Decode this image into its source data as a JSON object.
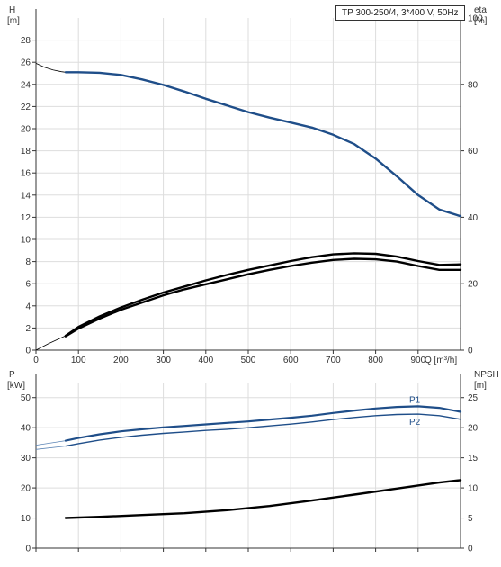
{
  "colors": {
    "blue": "#1f4e89",
    "black": "#000000",
    "grid": "#dddddd",
    "axis": "#333333",
    "thin_blue": "#5b84b5"
  },
  "chart_data": [
    {
      "type": "line",
      "title": "TP 300-250/4, 3*400 V, 50Hz",
      "xlabel": "Q [m³/h]",
      "ylabel_left_name": "H",
      "ylabel_left_unit": "[m]",
      "ylabel_right_name": "eta",
      "ylabel_right_unit": "[%]",
      "xlim": [
        0,
        1000
      ],
      "ylim_left": [
        0,
        30
      ],
      "ylim_right": [
        0,
        100
      ],
      "x_ticks": [
        "0",
        "100",
        "200",
        "300",
        "400",
        "500",
        "600",
        "700",
        "800",
        "900"
      ],
      "y_ticks_left": [
        "0",
        "2",
        "4",
        "6",
        "8",
        "10",
        "12",
        "14",
        "16",
        "18",
        "20",
        "22",
        "24",
        "26",
        "28"
      ],
      "y_ticks_right": [
        "0",
        "20",
        "40",
        "60",
        "80",
        "100"
      ],
      "grid": true,
      "series": [
        {
          "id": "head",
          "color": "blue",
          "x": [
            70,
            100,
            150,
            200,
            250,
            300,
            350,
            400,
            450,
            500,
            550,
            600,
            650,
            700,
            750,
            800,
            850,
            900,
            950,
            1000
          ],
          "y": [
            25.1,
            25.1,
            25.05,
            24.85,
            24.45,
            23.95,
            23.35,
            22.7,
            22.1,
            21.5,
            21.0,
            20.55,
            20.1,
            19.45,
            18.6,
            17.3,
            15.7,
            14.0,
            12.7,
            12.1
          ]
        },
        {
          "id": "eta_upper",
          "color": "black",
          "x": [
            70,
            100,
            150,
            200,
            250,
            300,
            350,
            400,
            450,
            500,
            550,
            600,
            650,
            700,
            750,
            800,
            850,
            900,
            950,
            1000
          ],
          "y": [
            1.3,
            2.1,
            3.05,
            3.85,
            4.55,
            5.2,
            5.75,
            6.3,
            6.8,
            7.25,
            7.65,
            8.05,
            8.4,
            8.65,
            8.75,
            8.7,
            8.45,
            8.05,
            7.7,
            7.75
          ]
        },
        {
          "id": "eta_lower",
          "color": "black",
          "x": [
            70,
            100,
            150,
            200,
            250,
            300,
            350,
            400,
            450,
            500,
            550,
            600,
            650,
            700,
            750,
            800,
            850,
            900,
            950,
            1000
          ],
          "y": [
            1.25,
            1.95,
            2.85,
            3.65,
            4.3,
            4.95,
            5.5,
            5.95,
            6.4,
            6.85,
            7.25,
            7.6,
            7.9,
            8.15,
            8.25,
            8.2,
            8.0,
            7.6,
            7.25,
            7.25
          ]
        }
      ],
      "extrapolations": [
        {
          "color": "black",
          "x": [
            0,
            20,
            40,
            60,
            70
          ],
          "y": [
            25.9,
            25.55,
            25.3,
            25.15,
            25.1
          ]
        },
        {
          "color": "black",
          "x": [
            0,
            30,
            70
          ],
          "y": [
            0.0,
            0.6,
            1.3
          ]
        }
      ]
    },
    {
      "type": "line",
      "xlim": [
        0,
        1000
      ],
      "ylabel_left_name": "P",
      "ylabel_left_unit": "[kW]",
      "ylabel_right_name": "NPSH",
      "ylabel_right_unit": "[m]",
      "ylim_left": [
        0,
        55
      ],
      "ylim_right": [
        0,
        27.5
      ],
      "y_ticks_left": [
        "0",
        "10",
        "20",
        "30",
        "40",
        "50"
      ],
      "y_ticks_right": [
        "0",
        "5",
        "10",
        "15",
        "20",
        "25"
      ],
      "grid": true,
      "series": [
        {
          "id": "p1",
          "name": "P1",
          "color": "blue",
          "x": [
            70,
            100,
            150,
            200,
            250,
            300,
            350,
            400,
            450,
            500,
            550,
            600,
            650,
            700,
            750,
            800,
            850,
            900,
            950,
            1000
          ],
          "y": [
            35.7,
            36.6,
            37.8,
            38.8,
            39.5,
            40.1,
            40.6,
            41.1,
            41.6,
            42.1,
            42.7,
            43.3,
            44.0,
            44.9,
            45.7,
            46.4,
            46.9,
            47.1,
            46.6,
            45.3
          ]
        },
        {
          "id": "p2",
          "name": "P2",
          "color": "blue",
          "x": [
            70,
            100,
            150,
            200,
            250,
            300,
            350,
            400,
            450,
            500,
            550,
            600,
            650,
            700,
            750,
            800,
            850,
            900,
            950,
            1000
          ],
          "y": [
            33.9,
            34.7,
            35.9,
            36.8,
            37.5,
            38.1,
            38.6,
            39.1,
            39.5,
            40.0,
            40.6,
            41.2,
            41.9,
            42.7,
            43.4,
            44.0,
            44.4,
            44.5,
            44.0,
            42.8
          ]
        },
        {
          "id": "npsh",
          "color": "black",
          "axis": "right",
          "x": [
            70,
            150,
            250,
            350,
            450,
            550,
            650,
            750,
            850,
            950,
            1000
          ],
          "y": [
            5.0,
            5.2,
            5.5,
            5.8,
            6.3,
            7.0,
            7.9,
            8.9,
            9.9,
            10.9,
            11.3
          ]
        }
      ],
      "extrapolations": [
        {
          "color": "thin_blue",
          "x": [
            0,
            70
          ],
          "y": [
            34.2,
            35.7
          ]
        },
        {
          "color": "thin_blue",
          "x": [
            0,
            70
          ],
          "y": [
            32.8,
            33.9
          ]
        }
      ]
    }
  ]
}
